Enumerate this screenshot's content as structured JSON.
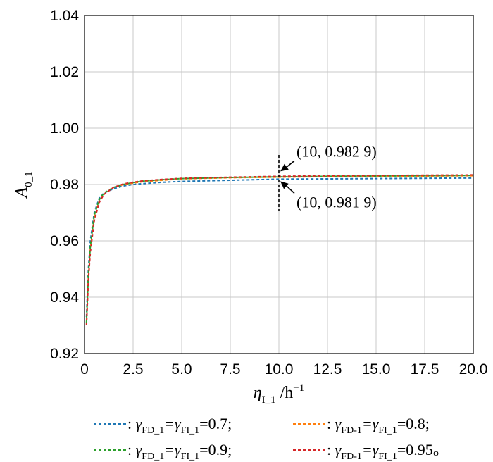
{
  "chart_data": {
    "type": "line",
    "title": "",
    "xlim": [
      0,
      20
    ],
    "ylim": [
      0.92,
      1.04
    ],
    "x_ticks": [
      "0",
      "2.5",
      "5.0",
      "7.5",
      "10.0",
      "12.5",
      "15.0",
      "17.5",
      "20.0"
    ],
    "y_ticks": [
      "0.92",
      "0.94",
      "0.96",
      "0.98",
      "1.00",
      "1.02",
      "1.04"
    ],
    "x_tick_values": [
      0,
      2.5,
      5,
      7.5,
      10,
      12.5,
      15,
      17.5,
      20
    ],
    "y_tick_values": [
      0.92,
      0.94,
      0.96,
      0.98,
      1.0,
      1.02,
      1.04
    ],
    "xlabel": {
      "main": "η",
      "sub": "I_1",
      "tail": " /h",
      "sup": "−1"
    },
    "ylabel": {
      "main": "A",
      "sub": "0_1"
    },
    "grid": true,
    "series": [
      {
        "color": "#1f77b4",
        "x": [
          0.1,
          0.2,
          0.3,
          0.5,
          0.75,
          1.0,
          1.5,
          2.0,
          2.5,
          3.0,
          4.0,
          5.0,
          7.5,
          10.0,
          12.5,
          15.0,
          17.5,
          20.0
        ],
        "y": [
          0.933,
          0.95,
          0.96,
          0.97,
          0.975,
          0.977,
          0.9785,
          0.9795,
          0.98,
          0.9803,
          0.9808,
          0.9811,
          0.9815,
          0.9819,
          0.982,
          0.9821,
          0.9822,
          0.9823
        ]
      },
      {
        "color": "#ff7f0e",
        "x": [
          0.1,
          0.2,
          0.3,
          0.5,
          0.75,
          1.0,
          1.5,
          2.0,
          2.5,
          3.0,
          4.0,
          5.0,
          7.5,
          10.0,
          12.5,
          15.0,
          17.5,
          20.0
        ],
        "y": [
          0.93,
          0.947,
          0.957,
          0.968,
          0.974,
          0.9765,
          0.979,
          0.98,
          0.9805,
          0.981,
          0.9815,
          0.982,
          0.9824,
          0.9826,
          0.9828,
          0.9829,
          0.983,
          0.9831
        ]
      },
      {
        "color": "#2ca02c",
        "x": [
          0.1,
          0.2,
          0.3,
          0.5,
          0.75,
          1.0,
          1.5,
          2.0,
          2.5,
          3.0,
          4.0,
          5.0,
          7.5,
          10.0,
          12.5,
          15.0,
          17.5,
          20.0
        ],
        "y": [
          0.931,
          0.948,
          0.958,
          0.969,
          0.9745,
          0.977,
          0.979,
          0.98,
          0.9807,
          0.9812,
          0.9817,
          0.9821,
          0.9825,
          0.9827,
          0.9829,
          0.983,
          0.9831,
          0.9832
        ]
      },
      {
        "color": "#d62728",
        "x": [
          0.1,
          0.2,
          0.3,
          0.5,
          0.75,
          1.0,
          1.5,
          2.0,
          2.5,
          3.0,
          4.0,
          5.0,
          7.5,
          10.0,
          12.5,
          15.0,
          17.5,
          20.0
        ],
        "y": [
          0.93,
          0.946,
          0.956,
          0.967,
          0.9735,
          0.9765,
          0.979,
          0.9802,
          0.9808,
          0.9813,
          0.9818,
          0.9822,
          0.9826,
          0.9829,
          0.9831,
          0.9832,
          0.9833,
          0.9834
        ]
      }
    ],
    "reference_line_x": 10,
    "annotations": [
      {
        "text": "(10, 0.982 9)",
        "x": 10,
        "y": 0.9829,
        "position": "above"
      },
      {
        "text": "(10, 0.981 9)",
        "x": 10,
        "y": 0.9819,
        "position": "below"
      }
    ],
    "legend": {
      "placement": "bottom",
      "entries": [
        {
          "prefix": " : ",
          "g1": "γ",
          "s1": "FD_1",
          "g2": "=γ",
          "s2": "FI_1",
          "val": "=0.7;"
        },
        {
          "prefix": " : ",
          "g1": "γ",
          "s1": "FD-1",
          "g2": "=γ",
          "s2": "FI_1",
          "val": "=0.8;"
        },
        {
          "prefix": " : ",
          "g1": "γ",
          "s1": "FD_1",
          "g2": "=γ",
          "s2": "FI_1",
          "val": "=0.9;"
        },
        {
          "prefix": " : ",
          "g1": "γ",
          "s1": "FD-1",
          "g2": "=γ",
          "s2": "FI_1",
          "val": "=0.95。"
        }
      ]
    }
  }
}
